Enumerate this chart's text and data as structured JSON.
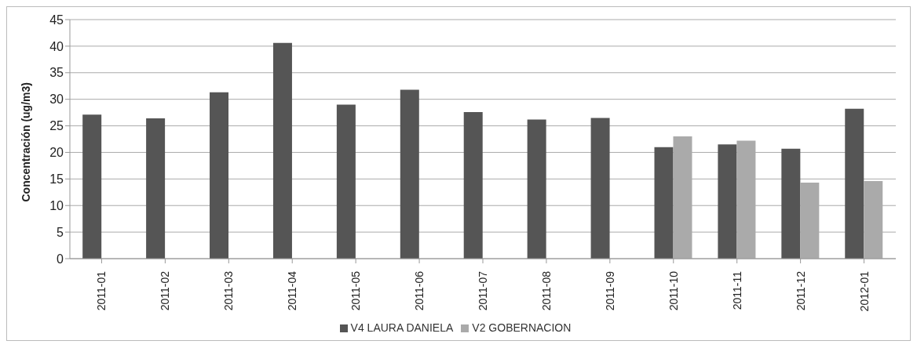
{
  "chart_data": {
    "type": "bar",
    "ylabel": "Concentración  (ug/m3)",
    "categories": [
      "2011-01",
      "2011-02",
      "2011-03",
      "2011-04",
      "2011-05",
      "2011-06",
      "2011-07",
      "2011-08",
      "2011-09",
      "2011-10",
      "2011-11",
      "2011-12",
      "2012-01"
    ],
    "series": [
      {
        "name": "V4 LAURA DANIELA",
        "color": "#555555",
        "values": [
          27.1,
          26.4,
          31.3,
          40.6,
          29.0,
          31.8,
          27.6,
          26.2,
          26.5,
          21.0,
          21.5,
          20.7,
          28.2
        ]
      },
      {
        "name": "V2 GOBERNACION",
        "color": "#aaaaaa",
        "values": [
          null,
          null,
          null,
          null,
          null,
          null,
          null,
          null,
          null,
          23.0,
          22.2,
          14.3,
          14.6
        ]
      }
    ],
    "ylim": [
      0,
      45
    ],
    "yticks": [
      0,
      5,
      10,
      15,
      20,
      25,
      30,
      35,
      40,
      45
    ],
    "grid": "y",
    "legend": "bottom"
  }
}
